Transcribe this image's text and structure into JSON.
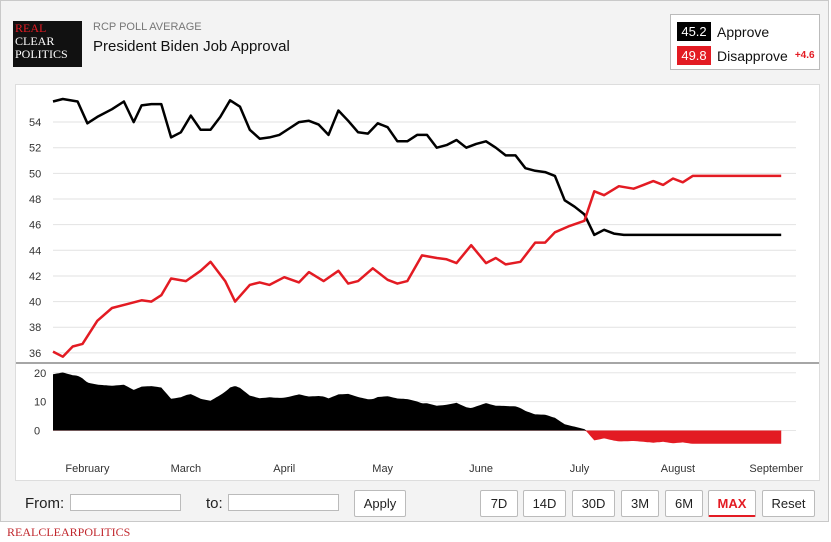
{
  "header": {
    "logo_lines": [
      "REAL",
      "CLEAR",
      "POLITICS"
    ],
    "kicker": "RCP POLL AVERAGE",
    "title": "President Biden Job Approval"
  },
  "legend": {
    "approve": {
      "value": "45.2",
      "label": "Approve",
      "color": "#000000"
    },
    "disapprove": {
      "value": "49.8",
      "label": "Disapprove",
      "color": "#e31b23"
    },
    "spread": "+4.6"
  },
  "controls": {
    "from_label": "From:",
    "to_label": "to:",
    "apply": "Apply",
    "ranges": [
      "7D",
      "14D",
      "30D",
      "3M",
      "6M",
      "MAX"
    ],
    "active_range": "MAX",
    "reset": "Reset"
  },
  "footer": "REALCLEARPOLITICS",
  "chart_data": {
    "type": "line",
    "x_unit": "month",
    "x_labels": [
      "February",
      "March",
      "April",
      "May",
      "June",
      "July",
      "August",
      "September"
    ],
    "y_ticks_main": [
      36,
      38,
      40,
      42,
      44,
      46,
      48,
      50,
      52,
      54
    ],
    "ylim_main": [
      34.9,
      56.5
    ],
    "series": [
      {
        "name": "Approve",
        "color": "#000000",
        "x": [
          0.0,
          0.1,
          0.25,
          0.35,
          0.45,
          0.6,
          0.72,
          0.82,
          0.9,
          1.0,
          1.1,
          1.2,
          1.3,
          1.4,
          1.5,
          1.6,
          1.7,
          1.8,
          1.9,
          2.0,
          2.1,
          2.2,
          2.3,
          2.4,
          2.5,
          2.6,
          2.7,
          2.8,
          2.9,
          3.0,
          3.1,
          3.2,
          3.3,
          3.4,
          3.5,
          3.6,
          3.7,
          3.8,
          3.9,
          4.0,
          4.1,
          4.2,
          4.3,
          4.4,
          4.5,
          4.6,
          4.7,
          4.8,
          4.9,
          5.0,
          5.1,
          5.2,
          5.3,
          5.4,
          5.5,
          5.6,
          5.7,
          5.8,
          5.9,
          6.0,
          6.1,
          6.2,
          6.3,
          6.4,
          6.5,
          6.6,
          6.7,
          6.8,
          6.9,
          7.0,
          7.1,
          7.2,
          7.3,
          7.4
        ],
        "values": [
          55.6,
          55.8,
          55.6,
          53.9,
          54.4,
          55.0,
          55.6,
          54.0,
          55.3,
          55.4,
          55.4,
          52.8,
          53.2,
          54.5,
          53.4,
          53.4,
          54.4,
          55.7,
          55.2,
          53.4,
          52.7,
          52.8,
          53.0,
          53.5,
          54.0,
          54.1,
          53.8,
          53.0,
          54.9,
          54.1,
          53.2,
          53.1,
          53.9,
          53.6,
          52.5,
          52.5,
          53.0,
          53.0,
          52.0,
          52.2,
          52.6,
          52.0,
          52.3,
          52.5,
          52.0,
          51.4,
          51.4,
          50.4,
          50.2,
          50.1,
          49.8,
          47.9,
          47.4,
          46.8,
          45.2,
          45.6,
          45.3,
          45.2,
          45.2,
          45.2,
          45.2,
          45.2,
          45.2,
          45.2,
          45.2,
          45.2,
          45.2,
          45.2,
          45.2,
          45.2,
          45.2,
          45.2,
          45.2,
          45.2
        ]
      },
      {
        "name": "Disapprove",
        "color": "#e31b23",
        "x": [
          0.0,
          0.1,
          0.2,
          0.3,
          0.45,
          0.6,
          0.75,
          0.9,
          1.0,
          1.1,
          1.2,
          1.35,
          1.5,
          1.6,
          1.75,
          1.85,
          2.0,
          2.1,
          2.2,
          2.35,
          2.5,
          2.6,
          2.75,
          2.9,
          3.0,
          3.1,
          3.25,
          3.4,
          3.5,
          3.6,
          3.75,
          3.9,
          4.0,
          4.1,
          4.25,
          4.4,
          4.5,
          4.6,
          4.75,
          4.9,
          5.0,
          5.1,
          5.25,
          5.4,
          5.5,
          5.6,
          5.75,
          5.9,
          6.0,
          6.1,
          6.2,
          6.3,
          6.4,
          6.5,
          6.6,
          6.7,
          6.8,
          6.9,
          7.0,
          7.1,
          7.2,
          7.3,
          7.4
        ],
        "values": [
          36.1,
          35.7,
          36.5,
          36.7,
          38.5,
          39.5,
          39.8,
          40.1,
          40.0,
          40.5,
          41.8,
          41.6,
          42.4,
          43.1,
          41.6,
          40.0,
          41.3,
          41.5,
          41.3,
          41.9,
          41.5,
          42.3,
          41.6,
          42.4,
          41.4,
          41.6,
          42.6,
          41.7,
          41.4,
          41.6,
          43.6,
          43.4,
          43.3,
          43.0,
          44.4,
          43.0,
          43.4,
          42.9,
          43.1,
          44.6,
          44.6,
          45.4,
          45.9,
          46.3,
          48.6,
          48.3,
          49.0,
          48.8,
          49.1,
          49.4,
          49.1,
          49.6,
          49.3,
          49.8,
          49.8,
          49.8,
          49.8,
          49.8,
          49.8,
          49.8,
          49.8,
          49.8,
          49.8
        ]
      }
    ],
    "spread": {
      "name": "Spread",
      "y_ticks": [
        0,
        10,
        20
      ],
      "ylim": [
        -5,
        22
      ]
    },
    "grid": true,
    "legend_placement": "top-right"
  }
}
